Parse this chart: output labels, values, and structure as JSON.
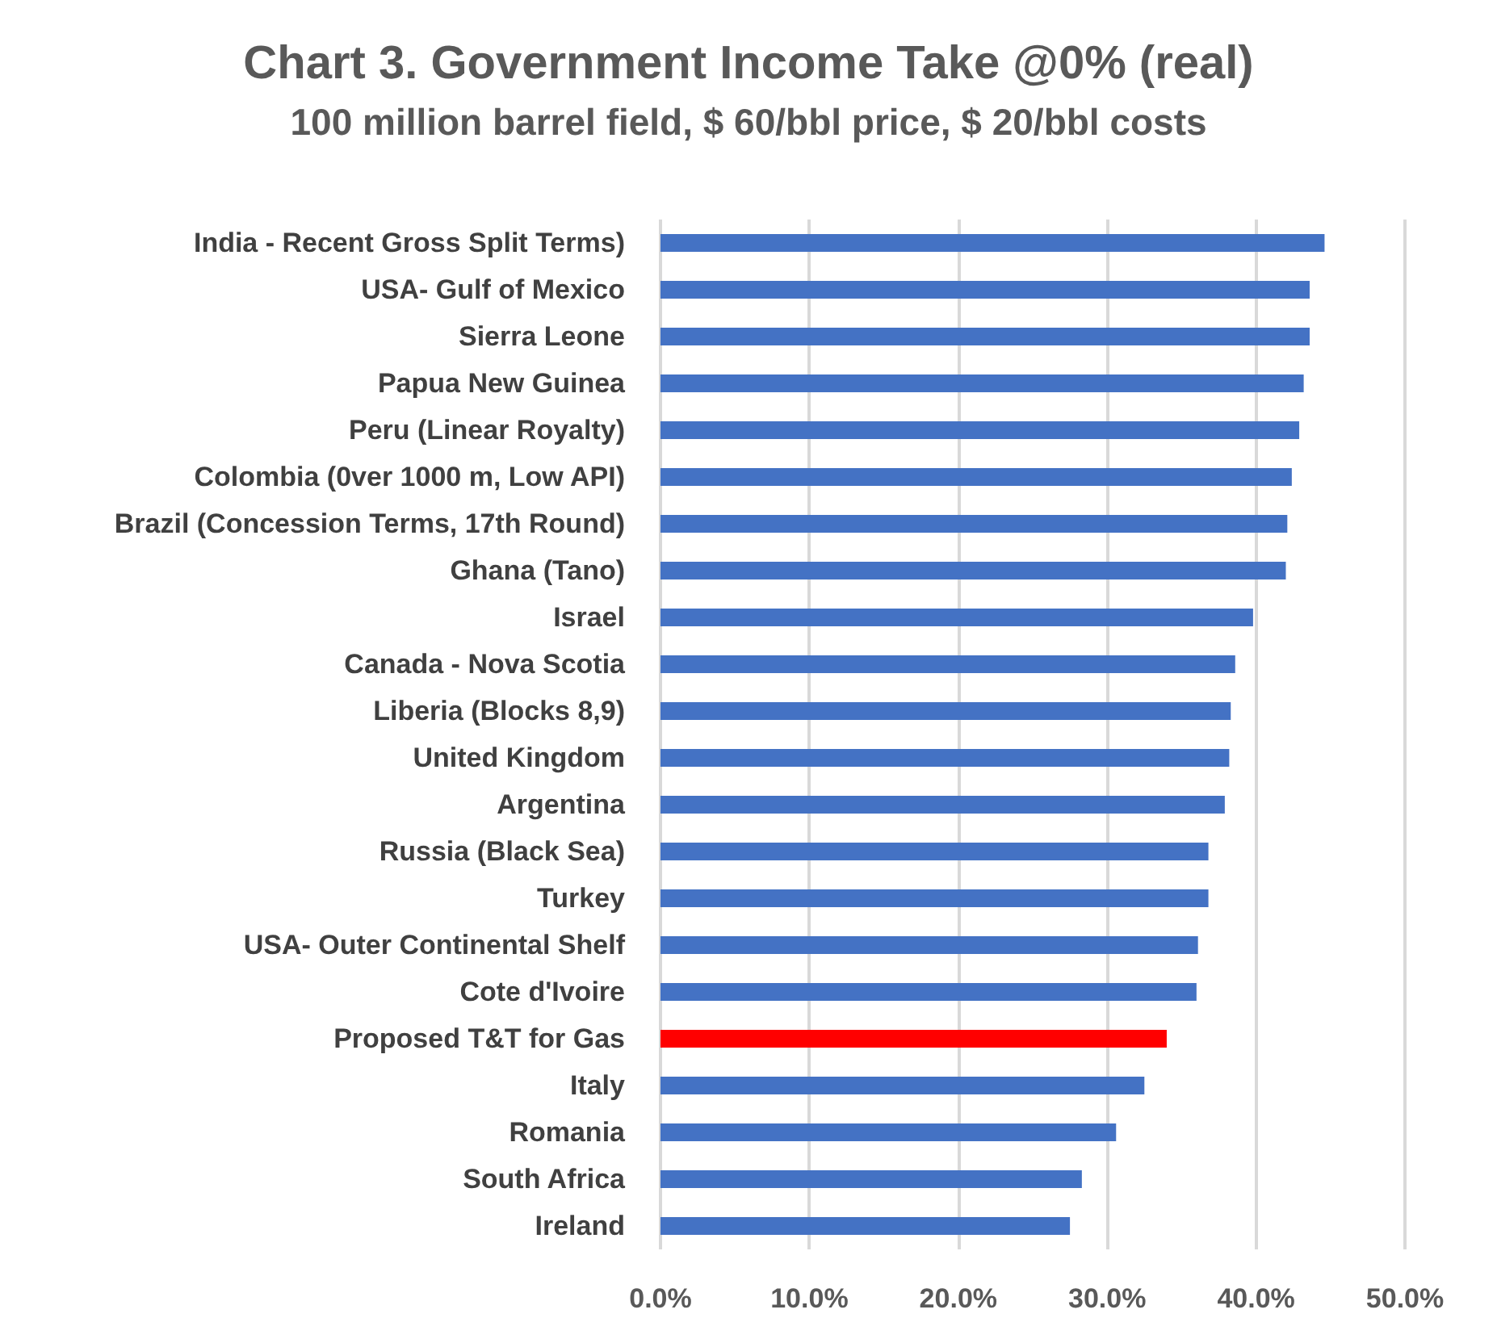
{
  "chart_data": {
    "type": "bar",
    "orientation": "horizontal",
    "title": "Chart 3. Government Income Take @0% (real)",
    "subtitle": "100 million barrel field, $ 60/bbl price, $ 20/bbl costs",
    "categories": [
      "India - Recent Gross Split Terms)",
      "USA- Gulf of Mexico",
      "Sierra Leone",
      "Papua New Guinea",
      "Peru (Linear Royalty)",
      "Colombia (0ver 1000 m, Low API)",
      "Brazil (Concession Terms, 17th Round)",
      "Ghana (Tano)",
      "Israel",
      "Canada - Nova Scotia",
      "Liberia (Blocks 8,9)",
      "United Kingdom",
      "Argentina",
      "Russia (Black Sea)",
      "Turkey",
      "USA- Outer Continental Shelf",
      "Cote d'Ivoire",
      "Proposed T&T for Gas",
      "Italy",
      "Romania",
      "South Africa",
      "Ireland"
    ],
    "values": [
      44.6,
      43.6,
      43.6,
      43.2,
      42.9,
      42.4,
      42.1,
      42.0,
      39.8,
      38.6,
      38.3,
      38.2,
      37.9,
      36.8,
      36.8,
      36.1,
      36.0,
      34.0,
      32.5,
      30.6,
      28.3,
      27.5
    ],
    "colors": [
      "#4472c4",
      "#4472c4",
      "#4472c4",
      "#4472c4",
      "#4472c4",
      "#4472c4",
      "#4472c4",
      "#4472c4",
      "#4472c4",
      "#4472c4",
      "#4472c4",
      "#4472c4",
      "#4472c4",
      "#4472c4",
      "#4472c4",
      "#4472c4",
      "#4472c4",
      "#ff0000",
      "#4472c4",
      "#4472c4",
      "#4472c4",
      "#4472c4"
    ],
    "xlim": [
      0,
      50
    ],
    "xticks": [
      {
        "value": 0,
        "label": "0.0%"
      },
      {
        "value": 10,
        "label": "10.0%"
      },
      {
        "value": 20,
        "label": "20.0%"
      },
      {
        "value": 30,
        "label": "30.0%"
      },
      {
        "value": 40,
        "label": "40.0%"
      },
      {
        "value": 50,
        "label": "50.0%"
      }
    ],
    "grid": "x"
  }
}
